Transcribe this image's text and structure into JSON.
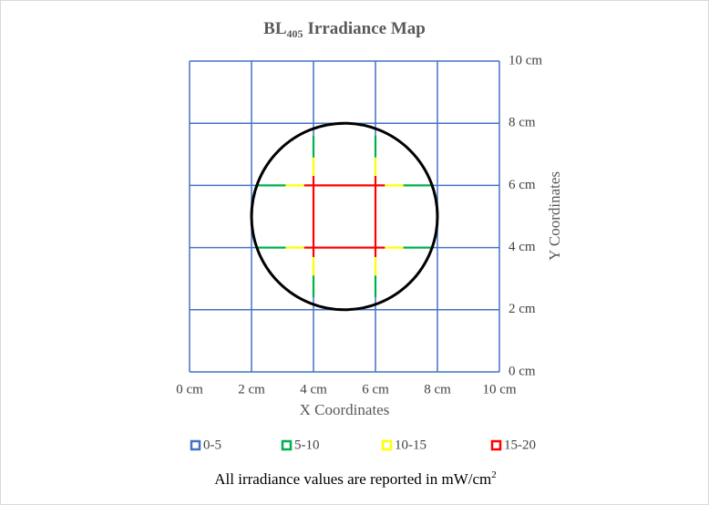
{
  "chart_data": {
    "type": "line",
    "title_parts": [
      "BL",
      "405",
      "Irradiance Map"
    ],
    "xlabel": "X Coordinates",
    "ylabel": "Y Coordinates",
    "note_parts": [
      "All irradiance values are reported in mW/cm",
      "2"
    ],
    "xlim": [
      0,
      10
    ],
    "ylim": [
      0,
      10
    ],
    "xticks": [
      {
        "value": 0,
        "label": "0 cm"
      },
      {
        "value": 2,
        "label": "2 cm"
      },
      {
        "value": 4,
        "label": "4 cm"
      },
      {
        "value": 6,
        "label": "6 cm"
      },
      {
        "value": 8,
        "label": "8 cm"
      },
      {
        "value": 10,
        "label": "10 cm"
      }
    ],
    "yticks": [
      {
        "value": 0,
        "label": "0 cm"
      },
      {
        "value": 2,
        "label": "2 cm"
      },
      {
        "value": 4,
        "label": "4 cm"
      },
      {
        "value": 6,
        "label": "6 cm"
      },
      {
        "value": 8,
        "label": "8 cm"
      },
      {
        "value": 10,
        "label": "10 cm"
      }
    ],
    "grid": true,
    "y_axis_side": "right",
    "legend": "bottom",
    "circle": {
      "center": [
        5,
        5
      ],
      "radius": 3
    },
    "series": [
      {
        "name": "0-5",
        "color": "#4472c4",
        "x": [],
        "values": []
      },
      {
        "name": "5-10",
        "color": "#00b050",
        "x": [
          2.2,
          3.1,
          null,
          6.9,
          7.8,
          null,
          2.2,
          3.1,
          null,
          6.9,
          7.8,
          null,
          4,
          4,
          null,
          4,
          4,
          null,
          6,
          6,
          null,
          6,
          6
        ],
        "values": [
          6,
          6,
          null,
          6,
          6,
          null,
          4,
          4,
          null,
          4,
          4,
          null,
          2.4,
          3.1,
          null,
          6.9,
          7.6,
          null,
          2.4,
          3.1,
          null,
          6.9,
          7.6
        ]
      },
      {
        "name": "10-15",
        "color": "#ffff00",
        "x": [
          3.1,
          3.7,
          null,
          6.3,
          6.9,
          null,
          3.1,
          3.7,
          null,
          6.3,
          6.9,
          null,
          4,
          4,
          null,
          4,
          4,
          null,
          6,
          6,
          null,
          6,
          6
        ],
        "values": [
          6,
          6,
          null,
          6,
          6,
          null,
          4,
          4,
          null,
          4,
          4,
          null,
          3.1,
          3.7,
          null,
          6.3,
          6.9,
          null,
          3.1,
          3.7,
          null,
          6.3,
          6.9
        ]
      },
      {
        "name": "15-20",
        "color": "#ff0000",
        "x": [
          3.7,
          6.3,
          null,
          3.7,
          6.3,
          null,
          4,
          4,
          null,
          6,
          6
        ],
        "values": [
          6,
          6,
          null,
          4,
          4,
          null,
          3.7,
          6.3,
          null,
          3.7,
          6.3
        ]
      }
    ]
  }
}
